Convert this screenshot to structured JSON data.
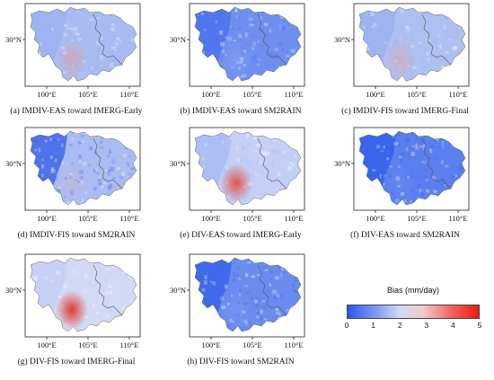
{
  "axes": {
    "lat_label": "30°N",
    "lon_labels": [
      "100°E",
      "105°E",
      "110°E"
    ]
  },
  "panels": [
    {
      "id": "a",
      "caption": "(a) IMDIV-EAS toward IMERG-Early",
      "base": "#a9bcf2",
      "west": "#9db2f0",
      "hot": "#e99a8c",
      "hot_strength": 0.55
    },
    {
      "id": "b",
      "caption": "(b) IMDIV-EAS toward SM2RAIN",
      "base": "#6e8ff0",
      "west": "#4d72ec",
      "hot": "#c7d3f7",
      "hot_strength": 0.2
    },
    {
      "id": "c",
      "caption": "(c) IMDIV-FIS toward IMERG-Final",
      "base": "#aebff2",
      "west": "#9bb0f0",
      "hot": "#ec9f92",
      "hot_strength": 0.5
    },
    {
      "id": "d",
      "caption": "(d) IMDIV-FIS toward SM2RAIN",
      "base": "#aabcf2",
      "west": "#3e66ea",
      "hot": "#e7b5ad",
      "hot_strength": 0.3
    },
    {
      "id": "e",
      "caption": "(e) DIV-EAS toward IMERG-Early",
      "base": "#c3cff5",
      "west": "#a8bbf2",
      "hot": "#e0483a",
      "hot_strength": 0.9
    },
    {
      "id": "f",
      "caption": "(f) DIV-EAS toward SM2RAIN",
      "base": "#5a7fee",
      "west": "#3560ea",
      "hot": "#9fb3f1",
      "hot_strength": 0.15
    },
    {
      "id": "g",
      "caption": "(g) DIV-FIS toward IMERG-Final",
      "base": "#d3d9f4",
      "west": "#c4cff5",
      "hot": "#e23a2c",
      "hot_strength": 1.0
    },
    {
      "id": "h",
      "caption": "(h) DIV-FIS toward SM2RAIN",
      "base": "#6a8cef",
      "west": "#3b63ea",
      "hot": "#a9bbf2",
      "hot_strength": 0.15
    }
  ],
  "legend": {
    "title": "Bias (mm/day)",
    "ticks": [
      "0",
      "1",
      "2",
      "3",
      "4",
      "5"
    ],
    "min": 0,
    "max": 5
  }
}
